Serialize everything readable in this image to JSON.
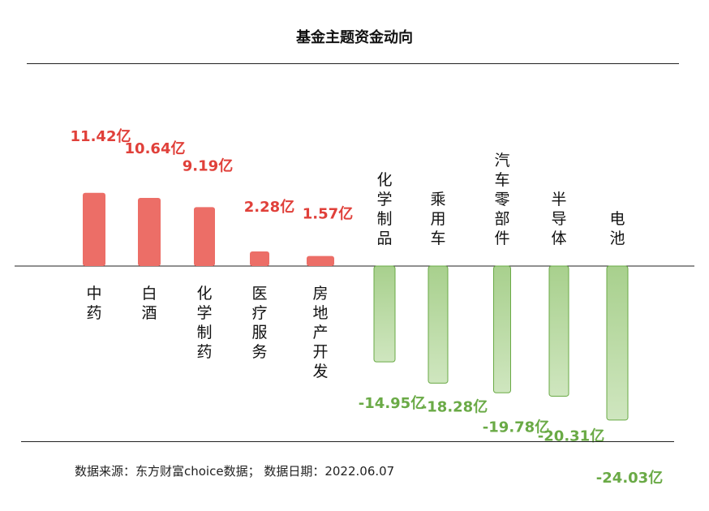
{
  "title": "基金主题资金动向",
  "footer": "数据来源：东方财富choice数据；  数据日期：2022.06.07",
  "chart_data": {
    "type": "bar",
    "title": "基金主题资金动向",
    "unit": "亿",
    "categories": [
      "中药",
      "白酒",
      "化学制药",
      "医疗服务",
      "房地产开发",
      "化学制品",
      "乘用车",
      "汽车零部件",
      "半导体",
      "电池"
    ],
    "values": [
      11.42,
      10.64,
      9.19,
      2.28,
      1.57,
      -14.95,
      -18.28,
      -19.78,
      -20.31,
      -24.03
    ],
    "data_labels": [
      "11.42亿",
      "10.64亿",
      "9.19亿",
      "2.28亿",
      "1.57亿",
      "-14.95亿",
      "-18.28亿",
      "-19.78亿",
      "-20.31亿",
      "-24.03亿"
    ],
    "colors": {
      "positive_bar": "#ec6e67",
      "positive_label": "#e0403a",
      "negative_bar_top": "#a8d08d",
      "negative_bar_bottom": "#cfe6bf",
      "negative_bar_border": "#6aaa46",
      "negative_label": "#6aaa46",
      "category_label": "#111111"
    }
  }
}
